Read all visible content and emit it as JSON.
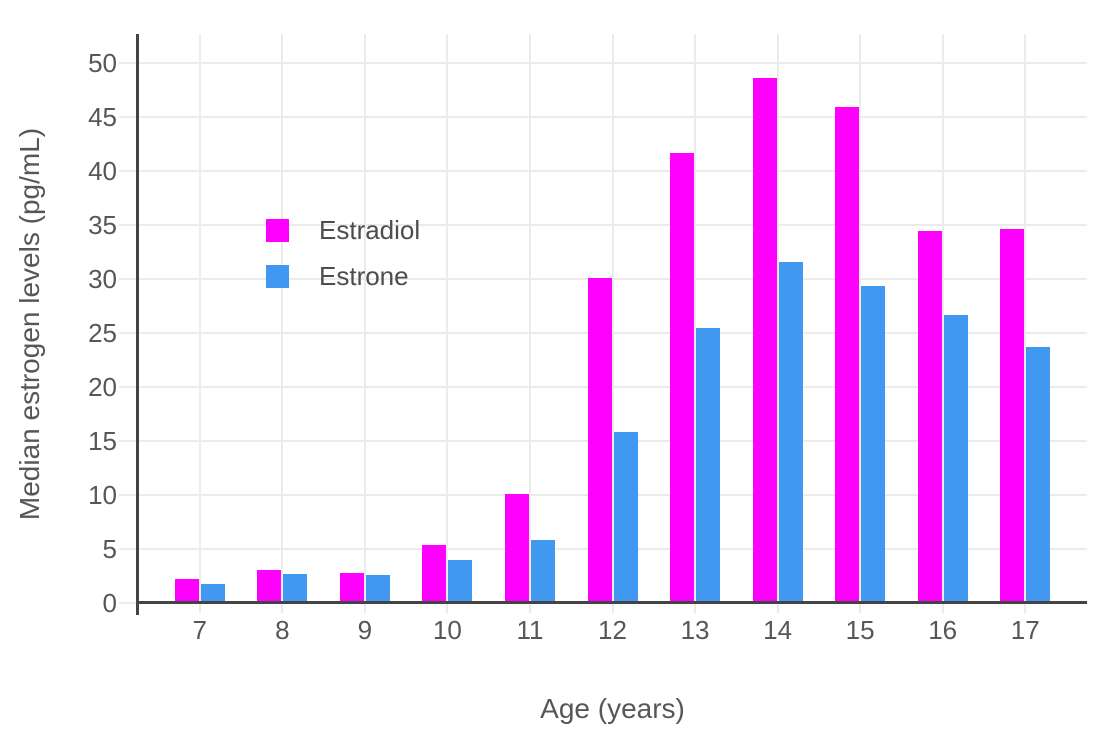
{
  "chart_data": {
    "type": "bar",
    "title": "",
    "xlabel": "Age (years)",
    "ylabel": "Median estrogen levels (pg/mL)",
    "categories": [
      7,
      8,
      9,
      10,
      11,
      12,
      13,
      14,
      15,
      16,
      17
    ],
    "series": [
      {
        "name": "Estradiol",
        "color": "#ff00ff",
        "values": [
          2.2,
          3.1,
          2.8,
          5.4,
          10.1,
          30.1,
          41.7,
          48.6,
          45.9,
          34.5,
          34.6
        ]
      },
      {
        "name": "Estrone",
        "color": "#4198f0",
        "values": [
          1.8,
          2.7,
          2.6,
          4.0,
          5.8,
          15.8,
          25.5,
          31.6,
          29.4,
          26.7,
          23.7
        ]
      }
    ],
    "yticks": [
      0,
      5,
      10,
      15,
      20,
      25,
      30,
      35,
      40,
      45,
      50
    ],
    "ylim": [
      0,
      52.7
    ],
    "grid": true,
    "legend_position": "inside-upper-left"
  },
  "style": {
    "plot_background": "#ffffff",
    "grid_color": "#ebebeb",
    "axis_line_color": "#444444",
    "text_color": "#575757",
    "estradiol_color": "#ff00ff",
    "estrone_color": "#4198f0"
  }
}
